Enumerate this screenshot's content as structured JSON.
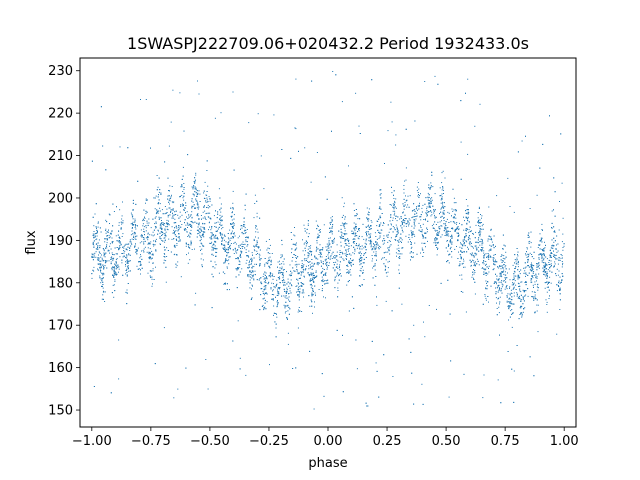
{
  "chart_data": {
    "type": "scatter",
    "title": "1SWASPJ222709.06+020432.2 Period 1932433.0s",
    "xlabel": "phase",
    "ylabel": "flux",
    "xlim": [
      -1.05,
      1.05
    ],
    "ylim": [
      146,
      233
    ],
    "xticks": [
      -1.0,
      -0.75,
      -0.5,
      -0.25,
      0.0,
      0.25,
      0.5,
      0.75,
      1.0
    ],
    "xtick_labels": [
      "−1.00",
      "−0.75",
      "−0.50",
      "−0.25",
      "0.00",
      "0.25",
      "0.50",
      "0.75",
      "1.00"
    ],
    "yticks": [
      150,
      160,
      170,
      180,
      190,
      200,
      210,
      220,
      230
    ],
    "ytick_labels": [
      "150",
      "160",
      "170",
      "180",
      "190",
      "200",
      "210",
      "220",
      "230"
    ],
    "grid": false,
    "legend": "none",
    "point_color": "#1f77b4",
    "x_range": [
      -1.0,
      1.0
    ],
    "y_range": [
      150,
      230
    ],
    "series": [
      {
        "trend_x": [
          -1.0,
          -0.9,
          -0.8,
          -0.75,
          -0.7,
          -0.6,
          -0.55,
          -0.5,
          -0.45,
          -0.4,
          -0.35,
          -0.3,
          -0.25,
          -0.2,
          -0.15,
          -0.1,
          -0.05,
          0.0,
          0.1,
          0.2,
          0.25,
          0.3,
          0.4,
          0.45,
          0.5,
          0.55,
          0.6,
          0.65,
          0.7,
          0.75,
          0.8,
          0.85,
          0.9,
          0.95,
          1.0
        ],
        "trend_y": [
          186,
          187,
          190,
          190,
          194,
          195,
          196,
          193,
          190,
          189,
          188,
          184,
          180,
          178,
          182,
          184,
          185,
          186,
          188,
          190,
          190,
          194,
          195,
          196,
          193,
          190,
          189,
          188,
          184,
          180,
          178,
          182,
          184,
          185,
          186
        ]
      }
    ]
  }
}
